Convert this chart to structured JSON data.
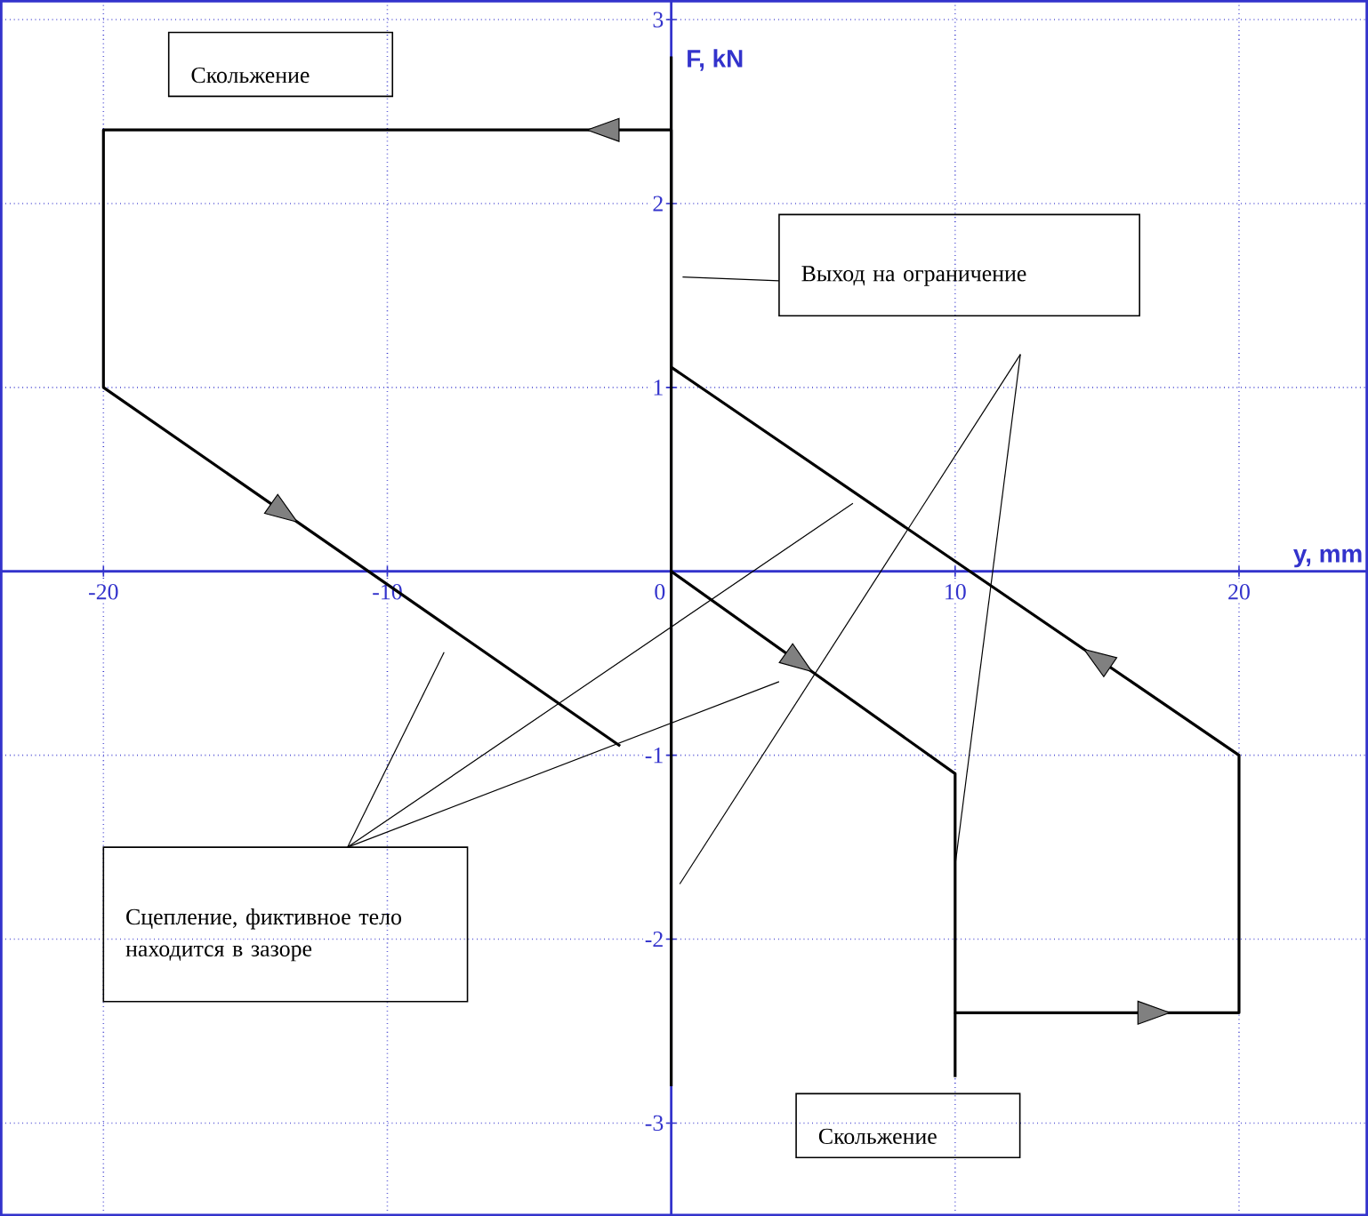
{
  "chart_data": {
    "type": "line",
    "xlabel": "y, mm",
    "ylabel": "F, kN",
    "xlim": [
      -23.6,
      24.5
    ],
    "ylim": [
      -3.5,
      3.1
    ],
    "xticks": [
      -20,
      -10,
      0,
      10,
      20
    ],
    "yticks": [
      -3,
      -2,
      -1,
      1,
      2,
      3
    ],
    "grid": true,
    "series": [
      {
        "color": "#000000",
        "x": [
          0,
          10,
          10,
          20,
          20,
          0,
          0,
          -20,
          -20,
          -1.8
        ],
        "values": [
          0,
          -1.1,
          -2.4,
          -2.4,
          -1,
          1.11,
          2.4,
          2.4,
          1,
          -0.95
        ]
      },
      {
        "color": "#000000",
        "x": [
          10,
          10
        ],
        "values": [
          -2.4,
          -2.75
        ]
      },
      {
        "color": "#000000",
        "x": [
          0,
          0
        ],
        "values": [
          -2.8,
          2.8
        ]
      }
    ],
    "annotations": [
      "Скольжение",
      "Выход на ограничение",
      "Сцепление, фиктивное тело находится в зазоре",
      "Скольжение"
    ]
  }
}
